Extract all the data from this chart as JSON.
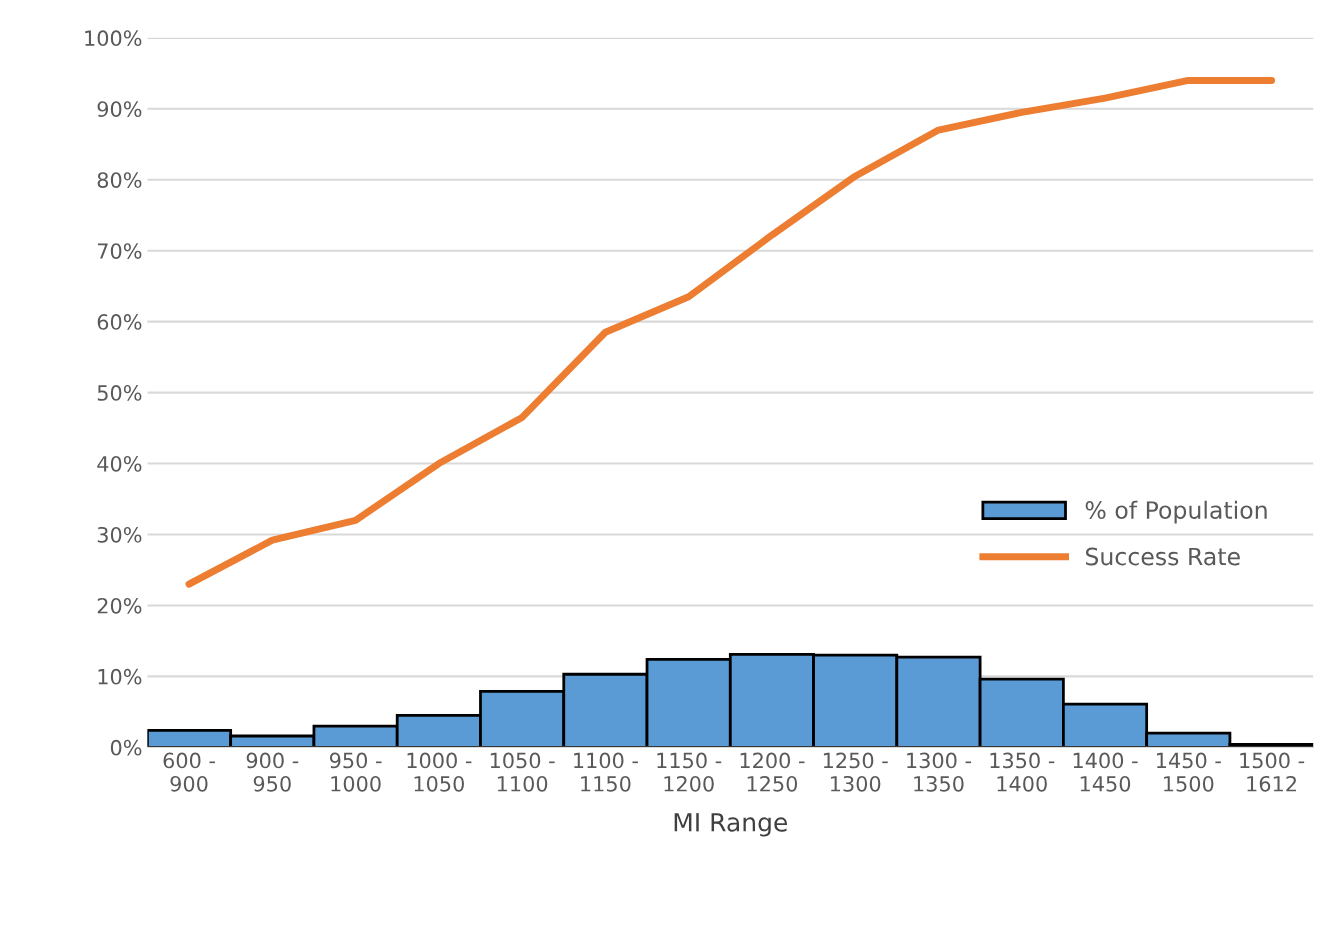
{
  "chart_data": {
    "type": "bar",
    "xlabel": "MI Range",
    "categories": [
      "600 -\n900",
      "900 -\n950",
      "950 -\n1000",
      "1000 -\n1050",
      "1050 -\n1100",
      "1100 -\n1150",
      "1150 -\n1200",
      "1200 -\n1250",
      "1250 -\n1300",
      "1300 -\n1350",
      "1350 -\n1400",
      "1400 -\n1450",
      "1450 -\n1500",
      "1500 -\n1612"
    ],
    "series": [
      {
        "name": "% of Population",
        "color": "#5b9bd5",
        "values": [
          2.4,
          1.6,
          3.0,
          4.5,
          7.9,
          10.3,
          12.4,
          13.1,
          13.0,
          12.7,
          9.6,
          6.1,
          2.0,
          0.4
        ]
      },
      {
        "name": "Success Rate",
        "type": "line",
        "color": "#ed7d31",
        "values": [
          23.0,
          29.2,
          32.0,
          40.0,
          46.5,
          58.5,
          63.5,
          72.2,
          80.5,
          87.0,
          89.5,
          91.5,
          94.0,
          94.0
        ]
      }
    ],
    "ylim": [
      0,
      100
    ],
    "yticks": [
      {
        "value": 0,
        "label": "0%"
      },
      {
        "value": 10,
        "label": "10%"
      },
      {
        "value": 20,
        "label": "20%"
      },
      {
        "value": 30,
        "label": "30%"
      },
      {
        "value": 40,
        "label": "40%"
      },
      {
        "value": 50,
        "label": "50%"
      },
      {
        "value": 60,
        "label": "60%"
      },
      {
        "value": 70,
        "label": "70%"
      },
      {
        "value": 80,
        "label": "80%"
      },
      {
        "value": 90,
        "label": "90%"
      },
      {
        "value": 100,
        "label": "100%"
      }
    ],
    "grid": "y",
    "legend": "right",
    "marker": "none",
    "line_style": "solid"
  }
}
